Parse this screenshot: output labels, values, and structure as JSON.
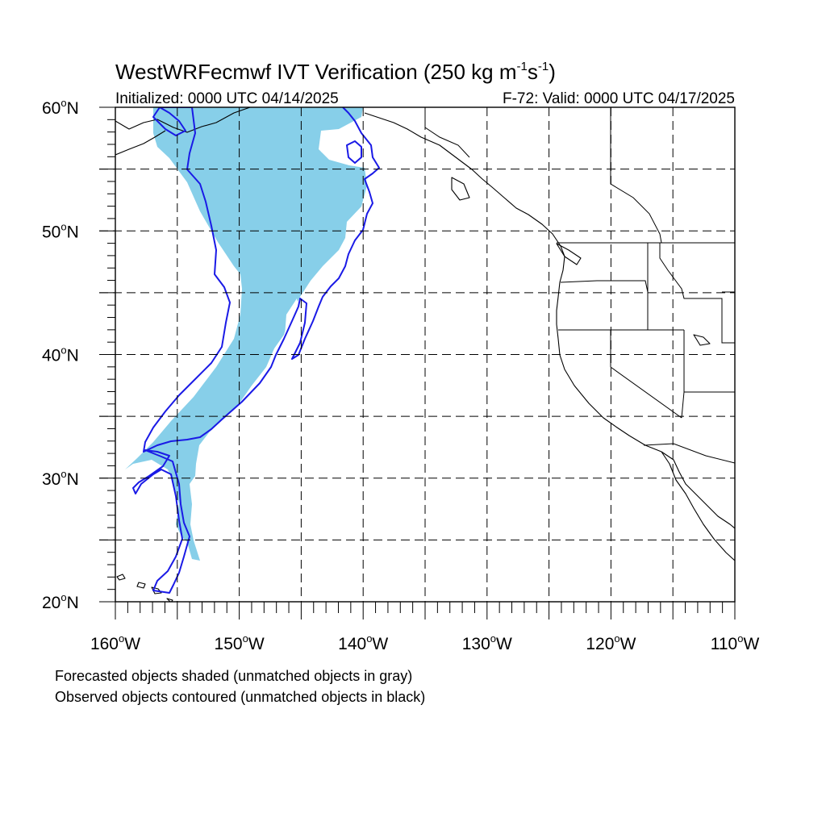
{
  "title": {
    "main": "WestWRFecmwf IVT Verification (250 kg m",
    "exp1": "-1",
    "mid": "s",
    "exp2": "-1",
    "close": ")"
  },
  "initialized": "Initialized: 0000 UTC 04/14/2025",
  "valid": "F-72: Valid: 0000 UTC 04/17/2025",
  "map": {
    "lon_range": [
      -160,
      -110
    ],
    "lat_range": [
      20,
      60
    ],
    "lon_labels": [
      {
        "value": -160,
        "deg": "160",
        "hemi": "W"
      },
      {
        "value": -150,
        "deg": "150",
        "hemi": "W"
      },
      {
        "value": -140,
        "deg": "140",
        "hemi": "W"
      },
      {
        "value": -130,
        "deg": "130",
        "hemi": "W"
      },
      {
        "value": -120,
        "deg": "120",
        "hemi": "W"
      },
      {
        "value": -110,
        "deg": "110",
        "hemi": "W"
      }
    ],
    "lat_labels": [
      {
        "value": 60,
        "deg": "60",
        "hemi": "N"
      },
      {
        "value": 50,
        "deg": "50",
        "hemi": "N"
      },
      {
        "value": 40,
        "deg": "40",
        "hemi": "N"
      },
      {
        "value": 30,
        "deg": "30",
        "hemi": "N"
      },
      {
        "value": 20,
        "deg": "20",
        "hemi": "N"
      }
    ],
    "grid_spacing_deg": 5,
    "forecast_fill_color": "#87cfe9",
    "observed_contour_color": "#1a1ae6"
  },
  "legend_notes": [
    "Forecasted objects shaded (unmatched objects in gray)",
    "Observed objects contoured (unmatched objects in black)"
  ]
}
